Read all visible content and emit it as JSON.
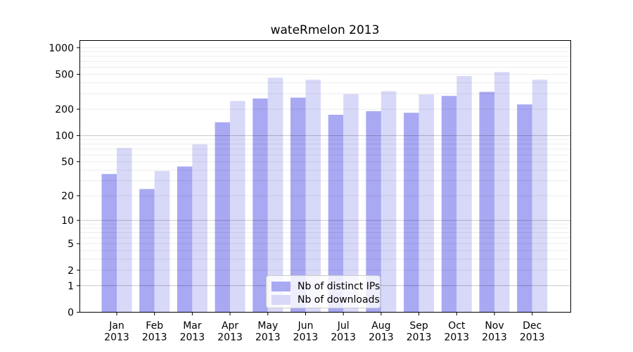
{
  "figure": {
    "title": "wateRmelon 2013"
  },
  "chart_data": {
    "type": "bar",
    "title": "wateRmelon 2013",
    "categories": [
      "Jan 2013",
      "Feb 2013",
      "Mar 2013",
      "Apr 2013",
      "May 2013",
      "Jun 2013",
      "Jul 2013",
      "Aug 2013",
      "Sep 2013",
      "Oct 2013",
      "Nov 2013",
      "Dec 2013"
    ],
    "series": [
      {
        "name": "Nb of distinct IPs",
        "color": "#a8a8f3",
        "values": [
          36,
          24,
          44,
          142,
          265,
          271,
          173,
          190,
          182,
          284,
          315,
          227
        ]
      },
      {
        "name": "Nb of downloads",
        "color": "#d8d8f8",
        "values": [
          72,
          39,
          79,
          248,
          457,
          433,
          298,
          321,
          295,
          477,
          530,
          434
        ]
      }
    ],
    "xlabel": "",
    "ylabel": "",
    "yscale": "log10(value+1)",
    "ylim": [
      0,
      1210
    ],
    "yticks": [
      0,
      1,
      2,
      5,
      10,
      20,
      50,
      100,
      200,
      500,
      1000
    ],
    "grid_major_at": [
      1,
      10,
      100
    ],
    "grid_minor_at": [
      2,
      3,
      4,
      5,
      6,
      7,
      8,
      9,
      20,
      30,
      40,
      50,
      60,
      70,
      80,
      90,
      200,
      300,
      400,
      500,
      600,
      700,
      800,
      900,
      1000
    ],
    "grid": "horizontal",
    "legend_position": "lower center",
    "colors": {
      "spine": "#000000",
      "tick_label": "#000000",
      "grid_major": "#c7c7c7",
      "grid_minor": "#ececec",
      "background": "#ffffff"
    }
  }
}
